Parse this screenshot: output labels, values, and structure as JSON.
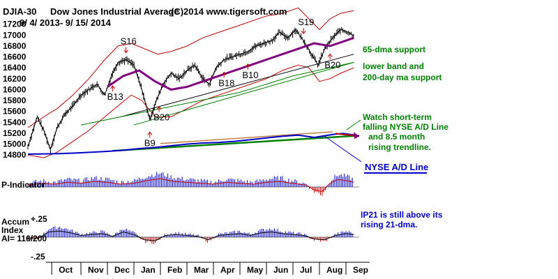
{
  "header": {
    "symbol": "DJIA-30",
    "name": "Dow Jones Industrial Average",
    "copyright": "(C)2014 www.tigersoft.com",
    "date_range": "9/ 4/ 2013- 9/ 15/ 2014"
  },
  "chart_data": {
    "type": "line",
    "title": "Dow Jones Industrial Average",
    "price_axis": {
      "ylim": [
        14700,
        17350
      ],
      "ticks": [
        17200,
        17000,
        16800,
        16600,
        16400,
        16200,
        16000,
        15800,
        15600,
        15400,
        15200,
        15000,
        14800
      ]
    },
    "months": [
      "Oct",
      "Nov",
      "Dec",
      "Jan",
      "Feb",
      "Mar",
      "Apr",
      "May",
      "Jun",
      "Jul",
      "Aug",
      "Sep"
    ],
    "time_axis": {
      "xlim": [
        0,
        12.5
      ]
    },
    "month_starts": [
      0.9,
      2.0,
      3.0,
      4.0,
      5.0,
      6.0,
      7.0,
      8.0,
      9.0,
      10.0,
      11.0,
      12.0
    ],
    "price_series": {
      "name": "DJIA",
      "x": [
        0.0,
        0.35,
        0.6,
        0.85,
        1.1,
        1.4,
        1.7,
        2.0,
        2.3,
        2.6,
        2.9,
        3.15,
        3.4,
        3.7,
        4.0,
        4.3,
        4.6,
        4.85,
        5.1,
        5.4,
        5.7,
        6.0,
        6.3,
        6.6,
        6.85,
        7.1,
        7.4,
        7.7,
        8.0,
        8.3,
        8.6,
        8.9,
        9.2,
        9.5,
        9.8,
        10.1,
        10.4,
        10.7,
        10.95,
        11.2,
        11.5,
        11.8,
        12.1,
        12.3
      ],
      "y": [
        14950,
        15500,
        15250,
        14900,
        15300,
        15550,
        15700,
        15900,
        16000,
        16100,
        15900,
        16250,
        16500,
        16550,
        16450,
        16000,
        15450,
        15800,
        16100,
        16300,
        16200,
        16350,
        16450,
        16200,
        16100,
        16400,
        16550,
        16600,
        16650,
        16700,
        16800,
        16850,
        16900,
        17050,
        16950,
        17100,
        16900,
        16650,
        16450,
        16750,
        16950,
        17100,
        17050,
        16990
      ]
    },
    "ma65": {
      "name": "65-dma",
      "x": [
        3.0,
        3.6,
        4.2,
        4.8,
        5.4,
        6.0,
        6.6,
        7.2,
        7.8,
        8.4,
        9.0,
        9.6,
        10.2,
        10.8,
        11.4,
        12.0,
        12.3
      ],
      "y": [
        16050,
        16250,
        16350,
        16150,
        16000,
        16050,
        16150,
        16250,
        16350,
        16450,
        16550,
        16650,
        16750,
        16850,
        16800,
        16900,
        16950
      ]
    },
    "ma200": {
      "name": "200-day ma",
      "x": [
        2.0,
        4.0,
        6.0,
        8.0,
        10.0,
        12.3
      ],
      "y": [
        15350,
        15550,
        15750,
        15950,
        16250,
        16500
      ]
    },
    "upper_band": {
      "x": [
        0.0,
        0.6,
        1.1,
        1.7,
        2.3,
        2.9,
        3.4,
        3.9,
        4.4,
        4.9,
        5.4,
        6.0,
        6.6,
        7.2,
        7.8,
        8.4,
        9.0,
        9.6,
        10.2,
        10.6,
        11.0,
        11.4,
        11.8,
        12.3
      ],
      "y": [
        15300,
        15500,
        15650,
        15900,
        16200,
        16550,
        16800,
        16850,
        16750,
        16650,
        16700,
        16800,
        16950,
        17050,
        17150,
        17250,
        17350,
        17400,
        17500,
        17300,
        17100,
        17300,
        17400,
        17450
      ]
    },
    "lower_band": {
      "x": [
        0.0,
        0.6,
        1.1,
        1.7,
        2.3,
        2.9,
        3.4,
        3.9,
        4.3,
        4.8,
        5.4,
        6.0,
        6.6,
        7.2,
        7.8,
        8.4,
        9.0,
        9.6,
        10.2,
        10.6,
        11.0,
        11.4,
        11.8,
        12.3
      ],
      "y": [
        14800,
        14750,
        14850,
        15050,
        15250,
        15500,
        15700,
        15900,
        15800,
        15500,
        15500,
        15650,
        15800,
        15900,
        16000,
        16100,
        16200,
        16350,
        16450,
        16400,
        16150,
        16200,
        16300,
        16400
      ]
    },
    "green_trend": {
      "x": [
        4.0,
        12.3
      ],
      "y": [
        15350,
        16500
      ]
    },
    "black_trend": {
      "x": [
        3.5,
        12.3
      ],
      "y": [
        15500,
        16650
      ]
    },
    "nyse_ad": {
      "name": "NYSE A/D Line",
      "x": [
        0.0,
        0.6,
        1.2,
        1.8,
        2.4,
        3.0,
        3.6,
        4.2,
        4.8,
        5.4,
        6.0,
        6.6,
        7.2,
        7.8,
        8.4,
        9.0,
        9.6,
        10.2,
        10.8,
        11.2,
        11.6,
        11.9,
        12.2,
        12.5
      ],
      "y": [
        10,
        11,
        12,
        14,
        17,
        20,
        24,
        30,
        34,
        40,
        46,
        50,
        52,
        56,
        62,
        68,
        74,
        78,
        70,
        76,
        82,
        84,
        80,
        76
      ]
    },
    "ad_trend_green": {
      "x": [
        3.2,
        12.4
      ],
      "y": [
        22,
        76
      ]
    },
    "ad_trend_brown": {
      "x": [
        5.0,
        11.5
      ],
      "y": [
        48,
        90
      ]
    },
    "ad_trend_red": {
      "x": [
        11.6,
        12.5
      ],
      "y": [
        84,
        74
      ]
    },
    "p_indicator": {
      "name": "P-Indicator",
      "x": [
        0.0,
        0.5,
        1.0,
        1.5,
        2.0,
        2.5,
        3.0,
        3.5,
        4.0,
        4.5,
        5.0,
        5.5,
        6.0,
        6.5,
        7.0,
        7.5,
        8.0,
        8.5,
        9.0,
        9.5,
        10.0,
        10.5,
        10.8,
        11.1,
        11.4,
        11.7,
        12.0,
        12.3
      ],
      "y": [
        2,
        4,
        3,
        5,
        4,
        6,
        5,
        3,
        4,
        7,
        9,
        6,
        5,
        4,
        3,
        5,
        4,
        3,
        5,
        6,
        4,
        2,
        -3,
        -5,
        4,
        8,
        7,
        5
      ]
    },
    "accum_index": {
      "name": "Accum Index",
      "ticks": [
        0.25,
        -0.25
      ],
      "ylim": [
        -0.27,
        0.27
      ],
      "x": [
        0.0,
        0.4,
        0.8,
        1.2,
        1.6,
        2.0,
        2.4,
        2.8,
        3.2,
        3.6,
        4.0,
        4.4,
        4.8,
        5.2,
        5.6,
        6.0,
        6.4,
        6.8,
        7.2,
        7.6,
        8.0,
        8.4,
        8.8,
        9.2,
        9.6,
        10.0,
        10.4,
        10.8,
        11.2,
        11.6,
        12.0,
        12.3
      ],
      "y": [
        -0.04,
        -0.02,
        0.12,
        0.14,
        0.1,
        0.04,
        0.06,
        0.08,
        0.02,
        0.12,
        0.06,
        -0.06,
        -0.08,
        0.04,
        0.06,
        0.04,
        0.02,
        -0.06,
        0.04,
        0.06,
        0.08,
        0.04,
        0.1,
        0.12,
        0.08,
        0.06,
        0.04,
        -0.04,
        -0.06,
        0.04,
        0.08,
        0.06
      ]
    },
    "ai_label": "AI= 116/200",
    "signals": [
      {
        "label": "S16",
        "x": 3.7,
        "type": "sell"
      },
      {
        "label": "S19",
        "x": 10.4,
        "type": "sell"
      },
      {
        "label": "B13",
        "x": 3.2,
        "type": "buy"
      },
      {
        "label": "B9",
        "x": 4.6,
        "type": "buy"
      },
      {
        "label": "B20",
        "x": 4.95,
        "type": "buy"
      },
      {
        "label": "B18",
        "x": 7.4,
        "type": "buy"
      },
      {
        "label": "B10",
        "x": 8.3,
        "type": "buy"
      },
      {
        "label": "B20",
        "x": 11.4,
        "type": "buy"
      }
    ],
    "annotations": {
      "dma65": "65-dma support",
      "lower_band_1": "lower band and",
      "lower_band_2": "200-day ma support",
      "watch_1": "Watch short-term",
      "watch_2": "falling NYSE A/D Line",
      "watch_3": "and 8.5 month",
      "watch_4": "rising trendline.",
      "nyse": "NYSE A/D Line",
      "ip21_1": "IP21 is still above its",
      "ip21_2": "rising 21-dma."
    },
    "labels": {
      "p_indicator": "P-Indicator",
      "accum": "Accum",
      "index": "Index",
      "ai": "AI= 116/200",
      "plus25": "+.25",
      "minus25": "-.25"
    }
  },
  "colors": {
    "price": "#000000",
    "ma65": "#800080",
    "ma200": "#008000",
    "band": "#c00000",
    "ad_line": "#0000c8",
    "ad_trend": "#008000",
    "p_pos": "#0000c8",
    "p_neg": "#c00000"
  }
}
